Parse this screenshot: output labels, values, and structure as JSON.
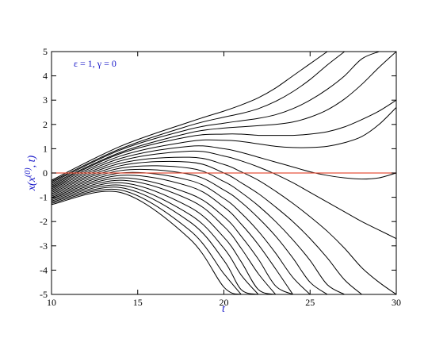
{
  "chart_data": {
    "type": "line",
    "title": "",
    "annotation": "ε = 1, γ = 0",
    "xlabel": "t",
    "ylabel": {
      "main": "x(x",
      "superscript": "(0)",
      "tail": ", t)"
    },
    "xlim": [
      10,
      30
    ],
    "ylim": [
      -5,
      5
    ],
    "xticks": [
      10,
      15,
      20,
      25,
      30
    ],
    "yticks": [
      -5,
      -4,
      -3,
      -2,
      -1,
      0,
      1,
      2,
      3,
      4,
      5
    ],
    "xtick_labels": [
      "10",
      "15",
      "20",
      "25",
      "30"
    ],
    "ytick_labels": [
      "-5",
      "-4",
      "-3",
      "-2",
      "-1",
      "0",
      "1",
      "2",
      "3",
      "4",
      "5"
    ],
    "grid": false,
    "reference_line": {
      "y": 0,
      "color": "#e8553d"
    },
    "series_color": "#000000",
    "label_color": "#1515c8",
    "series": [
      {
        "x": [
          10,
          14,
          18,
          20,
          21,
          22,
          23,
          24,
          25,
          26,
          27,
          28,
          29,
          30
        ],
        "values": [
          -0.3,
          1.1,
          2.1,
          2.55,
          2.8,
          3.1,
          3.5,
          4.0,
          4.5,
          5.0,
          null,
          null,
          null,
          null
        ]
      },
      {
        "x": [
          10,
          14,
          18,
          20,
          21,
          22,
          23,
          24,
          25,
          26,
          27,
          28,
          29,
          30
        ],
        "values": [
          -0.35,
          1.0,
          1.95,
          2.3,
          2.45,
          2.65,
          2.95,
          3.35,
          3.85,
          4.45,
          5.0,
          null,
          null,
          null
        ]
      },
      {
        "x": [
          10,
          14,
          18,
          20,
          21,
          22,
          23,
          24,
          25,
          26,
          27,
          28,
          29,
          30
        ],
        "values": [
          -0.4,
          0.95,
          1.8,
          2.05,
          2.15,
          2.25,
          2.4,
          2.65,
          3.0,
          3.45,
          4.0,
          4.7,
          5.0,
          null
        ]
      },
      {
        "x": [
          10,
          14,
          18,
          20,
          21,
          22,
          23,
          24,
          25,
          26,
          27,
          28,
          29,
          30
        ],
        "values": [
          -0.45,
          0.85,
          1.65,
          1.85,
          1.9,
          1.95,
          2.0,
          2.1,
          2.3,
          2.6,
          3.05,
          3.65,
          4.35,
          5.0
        ]
      },
      {
        "x": [
          10,
          14,
          18,
          20,
          21,
          22,
          23,
          24,
          25,
          26,
          27,
          28,
          29,
          30
        ],
        "values": [
          -0.5,
          0.8,
          1.5,
          1.6,
          1.6,
          1.55,
          1.55,
          1.55,
          1.6,
          1.7,
          1.9,
          2.2,
          2.55,
          3.0
        ]
      },
      {
        "x": [
          10,
          14,
          18,
          20,
          21,
          22,
          23,
          24,
          25,
          26,
          27,
          28,
          29,
          30
        ],
        "values": [
          -0.55,
          0.7,
          1.3,
          1.35,
          1.3,
          1.2,
          1.1,
          1.05,
          1.05,
          1.1,
          1.25,
          1.5,
          2.0,
          2.7
        ]
      },
      {
        "x": [
          10,
          14,
          18,
          20,
          21,
          22,
          23,
          24,
          25,
          26,
          27,
          28,
          29,
          30
        ],
        "values": [
          -0.6,
          0.6,
          1.1,
          1.0,
          0.85,
          0.65,
          0.45,
          0.25,
          0.05,
          -0.1,
          -0.2,
          -0.25,
          -0.2,
          0.0
        ]
      },
      {
        "x": [
          10,
          14,
          18,
          20,
          21,
          22,
          23,
          24,
          25,
          26,
          27,
          28,
          29,
          30
        ],
        "values": [
          -0.65,
          0.5,
          0.9,
          0.7,
          0.5,
          0.25,
          -0.05,
          -0.4,
          -0.8,
          -1.2,
          -1.6,
          -2.0,
          -2.35,
          -2.7
        ]
      },
      {
        "x": [
          10,
          14,
          18,
          20,
          21,
          22,
          23,
          24,
          25,
          26,
          27,
          28,
          29,
          30
        ],
        "values": [
          -0.7,
          0.4,
          0.65,
          0.35,
          0.05,
          -0.3,
          -0.75,
          -1.25,
          -1.8,
          -2.4,
          -3.1,
          -3.9,
          -4.5,
          -5.0
        ]
      },
      {
        "x": [
          10,
          14,
          18,
          20,
          21,
          22,
          23,
          24,
          25,
          26,
          27,
          28,
          29,
          30
        ],
        "values": [
          -0.75,
          0.3,
          0.45,
          0.0,
          -0.4,
          -0.85,
          -1.4,
          -2.0,
          -2.7,
          -3.5,
          -4.4,
          -5.0,
          null,
          null
        ]
      },
      {
        "x": [
          10,
          14,
          18,
          20,
          21,
          22,
          23,
          24,
          25,
          26,
          27,
          28,
          29,
          30
        ],
        "values": [
          -0.8,
          0.2,
          0.2,
          -0.35,
          -0.8,
          -1.35,
          -2.0,
          -2.75,
          -3.6,
          -4.6,
          -5.0,
          null,
          null,
          null
        ]
      },
      {
        "x": [
          10,
          14,
          18,
          20,
          21,
          22,
          23,
          24,
          25,
          26,
          27,
          28,
          29,
          30
        ],
        "values": [
          -0.85,
          0.1,
          -0.05,
          -0.7,
          -1.2,
          -1.85,
          -2.6,
          -3.5,
          -4.5,
          -5.0,
          null,
          null,
          null,
          null
        ]
      },
      {
        "x": [
          10,
          14,
          18,
          20,
          21,
          22,
          23,
          24,
          25,
          26,
          27,
          28,
          29,
          30
        ],
        "values": [
          -0.9,
          0.0,
          -0.3,
          -1.05,
          -1.65,
          -2.4,
          -3.3,
          -4.3,
          -5.0,
          null,
          null,
          null,
          null,
          null
        ]
      },
      {
        "x": [
          10,
          14,
          18,
          20,
          21,
          22,
          23,
          24,
          25,
          26,
          27,
          28,
          29,
          30
        ],
        "values": [
          -0.95,
          -0.1,
          -0.55,
          -1.4,
          -2.1,
          -2.95,
          -3.95,
          -5.0,
          null,
          null,
          null,
          null,
          null,
          null
        ]
      },
      {
        "x": [
          10,
          14,
          18,
          20,
          21,
          22,
          23,
          24,
          25,
          26,
          27,
          28,
          29,
          30
        ],
        "values": [
          -1.0,
          -0.2,
          -0.85,
          -1.8,
          -2.6,
          -3.55,
          -4.65,
          -5.0,
          null,
          null,
          null,
          null,
          null,
          null
        ]
      },
      {
        "x": [
          10,
          14,
          18,
          20,
          21,
          22,
          23,
          24,
          25,
          26,
          27,
          28,
          29,
          30
        ],
        "values": [
          -1.05,
          -0.3,
          -1.1,
          -2.2,
          -3.1,
          -4.15,
          -5.0,
          null,
          null,
          null,
          null,
          null,
          null,
          null
        ]
      },
      {
        "x": [
          10,
          14,
          18,
          20,
          21,
          22,
          23,
          24,
          25,
          26,
          27,
          28,
          29,
          30
        ],
        "values": [
          -1.1,
          -0.4,
          -1.4,
          -2.65,
          -3.65,
          -4.8,
          -5.0,
          null,
          null,
          null,
          null,
          null,
          null,
          null
        ]
      },
      {
        "x": [
          10,
          14,
          18,
          20,
          21,
          22,
          23,
          24,
          25,
          26,
          27,
          28,
          29,
          30
        ],
        "values": [
          -1.15,
          -0.5,
          -1.7,
          -3.1,
          -4.2,
          -5.0,
          null,
          null,
          null,
          null,
          null,
          null,
          null,
          null
        ]
      },
      {
        "x": [
          10,
          14,
          18,
          20,
          21,
          22,
          23,
          24,
          25,
          26,
          27,
          28,
          29,
          30
        ],
        "values": [
          -1.2,
          -0.6,
          -2.0,
          -3.6,
          -4.8,
          -5.0,
          null,
          null,
          null,
          null,
          null,
          null,
          null,
          null
        ]
      },
      {
        "x": [
          10,
          14,
          18,
          20,
          21,
          22,
          23,
          24,
          25,
          26,
          27,
          28,
          29,
          30
        ],
        "values": [
          -1.25,
          -0.7,
          -2.35,
          -4.15,
          -5.0,
          null,
          null,
          null,
          null,
          null,
          null,
          null,
          null,
          null
        ]
      },
      {
        "x": [
          10,
          14,
          18,
          20,
          21,
          22,
          23,
          24,
          25,
          26,
          27,
          28,
          29,
          30
        ],
        "values": [
          -1.3,
          -0.8,
          -2.7,
          -4.7,
          -5.0,
          null,
          null,
          null,
          null,
          null,
          null,
          null,
          null,
          null
        ]
      }
    ]
  }
}
